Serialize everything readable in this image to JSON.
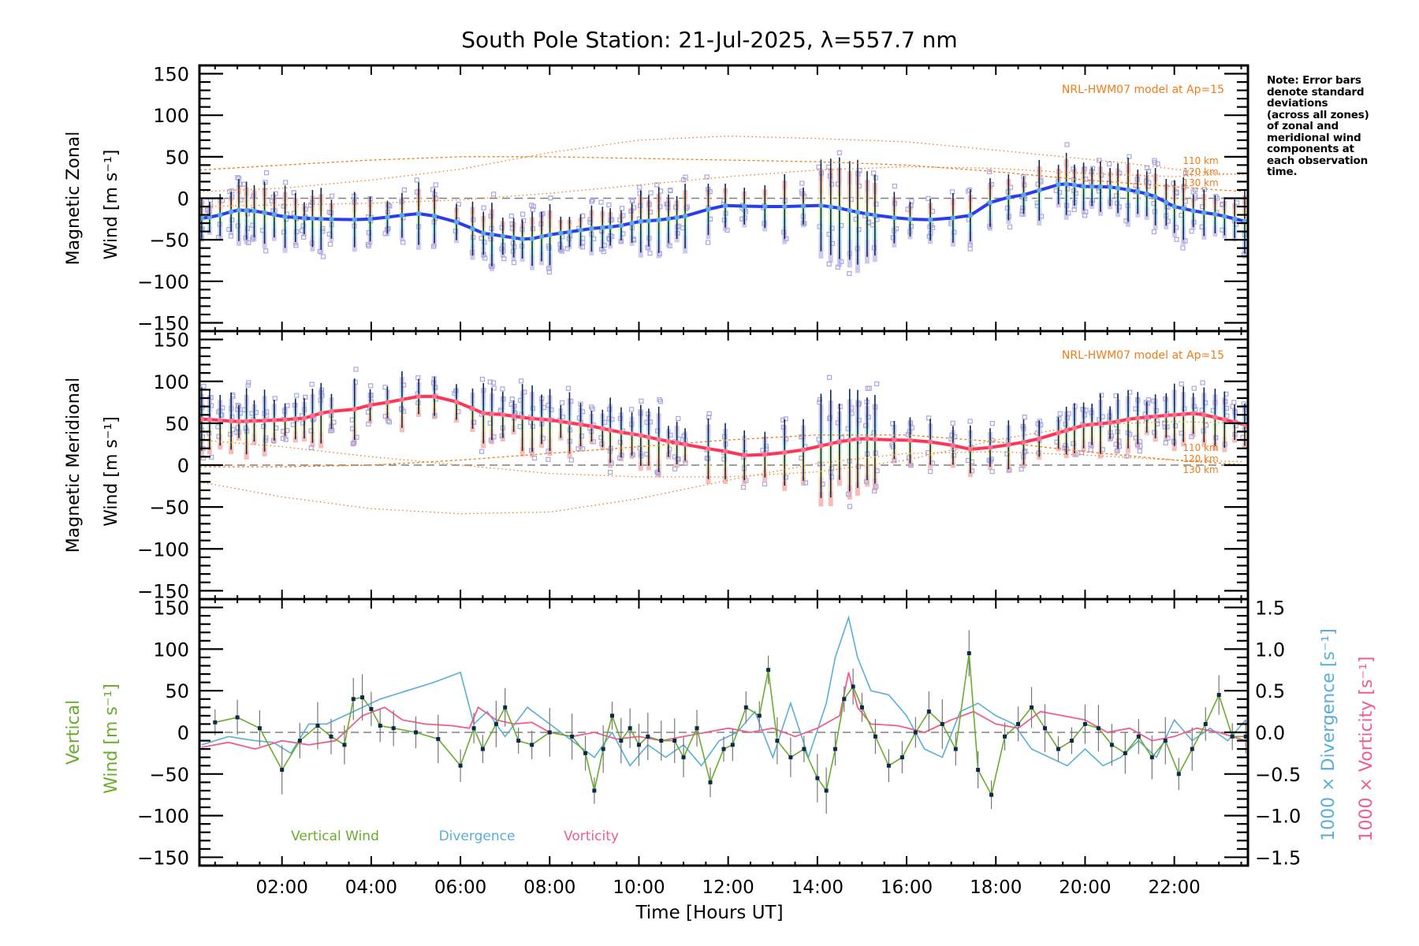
{
  "title": "South Pole Station: 21-Jul-2025, λ=557.7 nm",
  "note": "Note: Error bars\ndenote standard\ndeviations\n(across all zones)\nof zonal and\nmeridional wind\ncomponents at\neach observation\ntime.",
  "colors": {
    "zonal_mean": "#2b3bf0",
    "zonal_marker": "#5aa9e0",
    "meridional_mean": "#ff3355",
    "meridional_marker": "#ff6f90",
    "model": "#f07c1a",
    "zone_scatter": "#a9a6e0",
    "error_bar": "#0b2a4a",
    "vertical": "#6aac2e",
    "divergence": "#5aaed8",
    "vorticity": "#ee5e8e",
    "zero_line": "#808080"
  },
  "chart_data": [
    {
      "type": "line",
      "panel": "zonal",
      "ylabel_line1": "Magnetic Zonal",
      "ylabel_line2": "Wind [m s⁻¹]",
      "ylim": [
        -160,
        160
      ],
      "yticks": [
        150,
        100,
        50,
        0,
        -50,
        -100,
        -150
      ],
      "xlim": [
        0.15,
        23.65
      ],
      "model_label": "NRL-HWM07 model at Ap=15",
      "model_levels": [
        "110 km",
        "120 km",
        "130 km"
      ],
      "series": [
        {
          "name": "Zonal mean wind",
          "x": [
            0.2,
            0.5,
            1.0,
            1.5,
            2.0,
            2.5,
            3.0,
            3.5,
            4.0,
            4.5,
            5.0,
            5.5,
            6.0,
            6.5,
            7.0,
            7.5,
            8.0,
            8.5,
            9.0,
            9.5,
            10.0,
            10.5,
            11.0,
            11.5,
            12.0,
            12.5,
            13.0,
            13.5,
            14.0,
            14.5,
            15.0,
            15.5,
            16.0,
            16.5,
            17.0,
            17.5,
            18.0,
            18.5,
            19.0,
            19.5,
            20.0,
            20.5,
            21.0,
            21.5,
            22.0,
            22.5,
            23.0,
            23.6
          ],
          "values": [
            -24,
            -22,
            -14,
            -16,
            -22,
            -24,
            -25,
            -26,
            -25,
            -22,
            -18,
            -22,
            -30,
            -42,
            -46,
            -50,
            -44,
            -40,
            -36,
            -34,
            -28,
            -26,
            -22,
            -14,
            -8,
            -10,
            -10,
            -10,
            -8,
            -12,
            -18,
            -22,
            -25,
            -26,
            -24,
            -20,
            0,
            2,
            10,
            18,
            14,
            14,
            10,
            4,
            -10,
            -16,
            -20,
            -28
          ]
        },
        {
          "name": "NRL-HWM07 110 km",
          "x": [
            0.15,
            2,
            4,
            6,
            8,
            10,
            12,
            14,
            16,
            18,
            19.5,
            21,
            22,
            23,
            23.65
          ],
          "values": [
            8,
            12,
            22,
            35,
            55,
            70,
            75,
            72,
            68,
            58,
            50,
            42,
            35,
            30,
            28
          ]
        },
        {
          "name": "NRL-HWM07 120 km",
          "x": [
            0.15,
            2,
            4,
            6,
            8,
            10,
            12,
            14,
            16,
            18,
            20,
            22,
            23,
            23.65
          ],
          "values": [
            34,
            40,
            46,
            50,
            50,
            48,
            46,
            44,
            40,
            32,
            22,
            14,
            10,
            8
          ]
        },
        {
          "name": "NRL-HWM07 130 km",
          "x": [
            0.15,
            2,
            4,
            6,
            8,
            10,
            12,
            14,
            16,
            18,
            20,
            22,
            23.65
          ],
          "values": [
            -10,
            -8,
            -6,
            -2,
            6,
            16,
            26,
            34,
            38,
            36,
            30,
            26,
            30
          ]
        }
      ]
    },
    {
      "type": "line",
      "panel": "meridional",
      "ylabel_line1": "Magnetic Meridional",
      "ylabel_line2": "Wind [m s⁻¹]",
      "ylim": [
        -160,
        160
      ],
      "yticks": [
        150,
        100,
        50,
        0,
        -50,
        -100,
        -150
      ],
      "xlim": [
        0.15,
        23.65
      ],
      "model_label": "NRL-HWM07 model at Ap=15",
      "model_levels": [
        "110 km",
        "120 km",
        "130 km"
      ],
      "series": [
        {
          "name": "Meridional mean wind",
          "x": [
            0.2,
            0.5,
            1.0,
            1.5,
            2.0,
            2.5,
            3.0,
            3.5,
            4.0,
            4.5,
            5.0,
            5.5,
            6.0,
            6.5,
            7.0,
            7.5,
            8.0,
            8.5,
            9.0,
            9.5,
            10.0,
            10.5,
            11.0,
            11.5,
            12.0,
            12.5,
            13.0,
            13.5,
            14.0,
            14.5,
            15.0,
            15.5,
            16.0,
            16.5,
            17.0,
            17.5,
            18.0,
            18.5,
            19.0,
            19.5,
            20.0,
            20.5,
            21.0,
            21.5,
            22.0,
            22.5,
            23.0,
            23.6
          ],
          "values": [
            55,
            54,
            52,
            53,
            54,
            56,
            64,
            65,
            72,
            76,
            82,
            82,
            74,
            62,
            60,
            56,
            54,
            50,
            46,
            40,
            36,
            30,
            25,
            20,
            16,
            10,
            14,
            16,
            22,
            28,
            32,
            30,
            30,
            28,
            24,
            18,
            22,
            26,
            32,
            40,
            48,
            50,
            55,
            58,
            60,
            62,
            56,
            48
          ]
        },
        {
          "name": "NRL-HWM07 110 km",
          "x": [
            0.15,
            2,
            4,
            6,
            8,
            10,
            12,
            14,
            16,
            18,
            20,
            22,
            23.65
          ],
          "values": [
            30,
            22,
            10,
            0,
            -10,
            -14,
            -14,
            -8,
            6,
            30,
            48,
            52,
            50
          ]
        },
        {
          "name": "NRL-HWM07 120 km",
          "x": [
            0.15,
            2,
            4,
            6,
            8,
            10,
            12,
            14,
            16,
            18,
            20,
            22,
            23.65
          ],
          "values": [
            -2,
            -2,
            0,
            6,
            14,
            22,
            30,
            36,
            36,
            28,
            16,
            6,
            0
          ]
        },
        {
          "name": "NRL-HWM07 130 km",
          "x": [
            0.15,
            2,
            4,
            6,
            8,
            10,
            12,
            14,
            16,
            18,
            20,
            22,
            23.65
          ],
          "values": [
            -20,
            -38,
            -52,
            -58,
            -56,
            -40,
            -18,
            2,
            14,
            16,
            12,
            6,
            4
          ]
        }
      ]
    },
    {
      "type": "line",
      "panel": "vertical",
      "ylabel_line1": "Vertical",
      "ylabel_line2": "Wind [m s⁻¹]",
      "ylim": [
        -160,
        160
      ],
      "yticks": [
        150,
        100,
        50,
        0,
        -50,
        -100,
        -150
      ],
      "y2label_divergence": "1000 × Divergence [s⁻¹]",
      "y2label_vorticity": "1000 × Vorticity [s⁻¹]",
      "y2lim": [
        -1.6,
        1.6
      ],
      "y2ticks": [
        "1.5",
        "1.0",
        "0.5",
        "0.0",
        "-0.5",
        "-1.0",
        "-1.5"
      ],
      "xlim": [
        0.15,
        23.65
      ],
      "xlabel": "Time [Hours UT]",
      "xticks": [
        "02:00",
        "04:00",
        "06:00",
        "08:00",
        "10:00",
        "12:00",
        "14:00",
        "16:00",
        "18:00",
        "20:00",
        "22:00"
      ],
      "legend": [
        "Vertical Wind",
        "Divergence",
        "Vorticity"
      ],
      "series": [
        {
          "name": "Vertical Wind",
          "axis": "left",
          "x": [
            0.5,
            1.0,
            1.5,
            2.0,
            2.4,
            2.8,
            3.1,
            3.4,
            3.6,
            3.8,
            4.0,
            4.2,
            4.5,
            5.0,
            5.5,
            6.0,
            6.3,
            6.5,
            6.8,
            7.0,
            7.3,
            7.6,
            8.0,
            8.5,
            8.8,
            9.0,
            9.2,
            9.4,
            9.6,
            9.8,
            10.0,
            10.2,
            10.5,
            10.8,
            11.0,
            11.3,
            11.6,
            11.9,
            12.1,
            12.4,
            12.7,
            12.9,
            13.1,
            13.4,
            13.7,
            14.0,
            14.2,
            14.4,
            14.6,
            14.8,
            15.0,
            15.3,
            15.6,
            15.9,
            16.2,
            16.5,
            16.8,
            17.1,
            17.4,
            17.6,
            17.9,
            18.2,
            18.5,
            18.8,
            19.1,
            19.4,
            19.7,
            20.0,
            20.3,
            20.6,
            20.9,
            21.2,
            21.5,
            21.8,
            22.1,
            22.4,
            22.7,
            23.0,
            23.3,
            23.6
          ],
          "values": [
            12,
            18,
            5,
            -45,
            -10,
            8,
            -5,
            -15,
            40,
            42,
            28,
            8,
            5,
            0,
            -8,
            -40,
            5,
            -20,
            10,
            30,
            -10,
            -15,
            0,
            -5,
            -25,
            -70,
            -20,
            20,
            -10,
            5,
            -15,
            -5,
            -10,
            -10,
            -30,
            5,
            -60,
            -20,
            -15,
            30,
            20,
            75,
            -10,
            -30,
            -20,
            -55,
            -70,
            -20,
            40,
            55,
            30,
            -5,
            -40,
            -30,
            0,
            25,
            10,
            -20,
            95,
            -45,
            -75,
            -5,
            10,
            30,
            5,
            -20,
            -10,
            10,
            5,
            -15,
            -25,
            -5,
            -30,
            -10,
            -50,
            -20,
            10,
            45,
            -5,
            -5
          ]
        },
        {
          "name": "Divergence",
          "axis": "right",
          "x": [
            0.2,
            0.8,
            1.4,
            1.8,
            2.2,
            2.6,
            3.0,
            3.6,
            4.2,
            4.8,
            5.4,
            6.0,
            6.3,
            6.6,
            7.0,
            7.5,
            8.0,
            8.5,
            9.0,
            9.4,
            9.8,
            10.2,
            10.6,
            11.0,
            11.4,
            11.8,
            12.2,
            12.6,
            13.0,
            13.4,
            13.8,
            14.2,
            14.4,
            14.7,
            14.9,
            15.2,
            15.6,
            16.0,
            16.4,
            16.8,
            17.2,
            17.6,
            18.0,
            18.4,
            18.8,
            19.2,
            19.6,
            20.0,
            20.4,
            20.8,
            21.2,
            21.6,
            22.0,
            22.4,
            22.8,
            23.2,
            23.6
          ],
          "values": [
            -0.15,
            -0.05,
            -0.1,
            -0.12,
            -0.25,
            0.1,
            0.1,
            0.25,
            0.4,
            0.5,
            0.6,
            0.72,
            0.1,
            0.25,
            -0.05,
            0.3,
            0.1,
            -0.1,
            -0.3,
            0.0,
            -0.4,
            -0.15,
            -0.3,
            -0.15,
            -0.4,
            -0.1,
            0.0,
            0.25,
            -0.3,
            0.35,
            -0.3,
            0.35,
            0.9,
            1.38,
            0.9,
            0.5,
            0.45,
            0.2,
            -0.2,
            -0.3,
            0.25,
            0.35,
            0.2,
            0.1,
            -0.2,
            -0.3,
            -0.4,
            -0.2,
            -0.4,
            -0.3,
            -0.1,
            -0.3,
            0.15,
            -0.1,
            0.05,
            -0.1,
            0.15
          ]
        },
        {
          "name": "Vorticity",
          "axis": "right",
          "x": [
            0.2,
            0.8,
            1.4,
            2.0,
            2.6,
            3.2,
            3.8,
            4.3,
            4.7,
            5.2,
            5.8,
            6.2,
            6.4,
            6.8,
            7.2,
            7.6,
            8.0,
            8.5,
            9.0,
            9.5,
            10.0,
            10.5,
            11.0,
            11.5,
            12.0,
            12.5,
            13.0,
            13.5,
            14.0,
            14.5,
            14.7,
            14.9,
            15.2,
            15.8,
            16.4,
            17.0,
            17.5,
            18.0,
            18.5,
            19.0,
            19.5,
            20.0,
            20.5,
            21.0,
            21.5,
            22.0,
            22.5,
            23.0,
            23.6
          ],
          "values": [
            -0.18,
            -0.12,
            -0.2,
            -0.1,
            -0.15,
            -0.1,
            0.2,
            0.3,
            0.15,
            0.1,
            0.08,
            0.05,
            0.3,
            0.15,
            0.1,
            0.12,
            0.0,
            -0.05,
            0.0,
            -0.08,
            -0.05,
            -0.1,
            -0.05,
            0.0,
            0.05,
            0.0,
            0.05,
            -0.05,
            0.05,
            0.2,
            0.72,
            0.3,
            0.1,
            0.08,
            0.0,
            0.15,
            0.25,
            0.1,
            0.05,
            0.25,
            0.2,
            0.15,
            0.0,
            0.05,
            -0.1,
            -0.05,
            0.05,
            0.0,
            -0.1
          ]
        }
      ]
    }
  ]
}
